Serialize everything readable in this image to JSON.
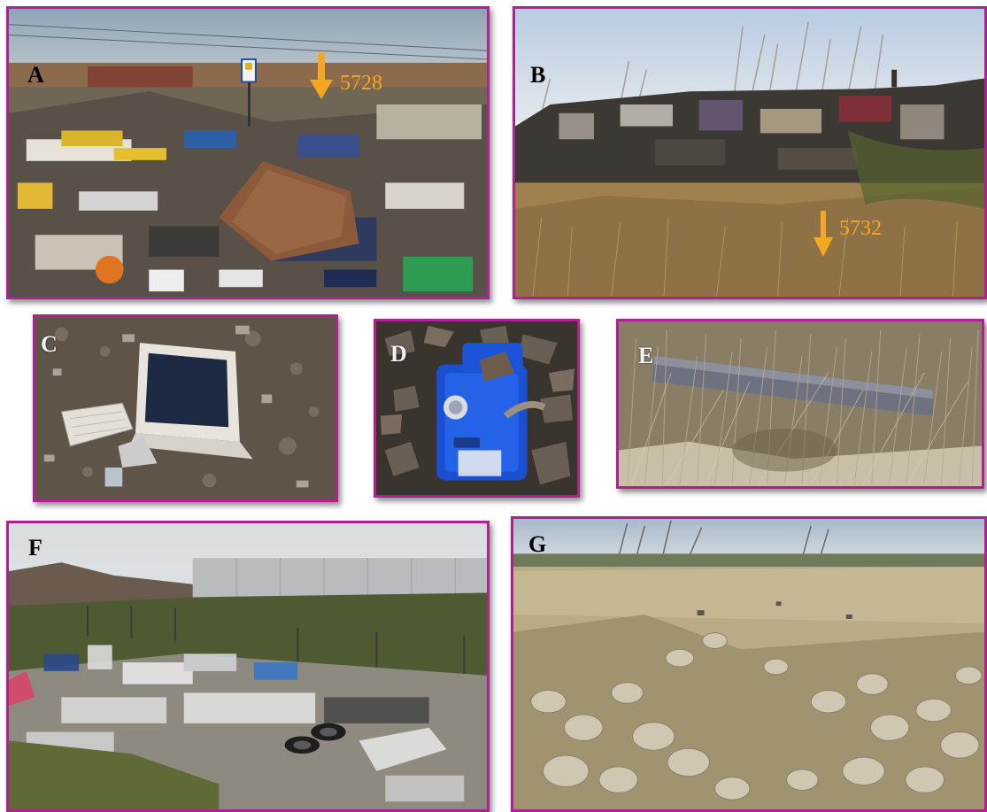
{
  "panels": {
    "a": {
      "label": "A",
      "marker": {
        "text": "5728",
        "icon": "arrow-down-icon"
      }
    },
    "b": {
      "label": "B",
      "marker": {
        "text": "5732",
        "icon": "arrow-down-icon"
      }
    },
    "c": {
      "label": "C"
    },
    "d": {
      "label": "D"
    },
    "e": {
      "label": "E"
    },
    "f": {
      "label": "F"
    },
    "g": {
      "label": "G"
    }
  },
  "colors": {
    "frame": "#b1208f",
    "marker": "#f5a623"
  }
}
